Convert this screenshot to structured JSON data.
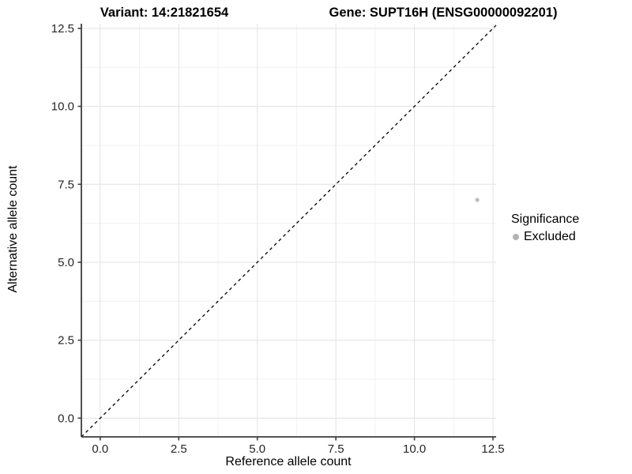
{
  "titles": {
    "variant": "Variant: 14:21821654",
    "gene": "Gene: SUPT16H (ENSG00000092201)"
  },
  "chart_data": {
    "type": "scatter",
    "xlabel": "Reference allele count",
    "ylabel": "Alternative allele count",
    "x_ticks": [
      0,
      2.5,
      5,
      7.5,
      10,
      12.5
    ],
    "x_tick_labels": [
      "0.0",
      "2.5",
      "5.0",
      "7.5",
      "10.0",
      "12.5"
    ],
    "y_ticks": [
      0,
      2.5,
      5,
      7.5,
      10,
      12.5
    ],
    "y_tick_labels": [
      "0.0",
      "2.5",
      "5.0",
      "7.5",
      "10.0",
      "12.5"
    ],
    "xlim": [
      -0.6,
      12.6
    ],
    "ylim": [
      -0.6,
      12.65
    ],
    "grid": {
      "major": true,
      "minor": true
    },
    "reference_line": {
      "kind": "identity",
      "slope": 1,
      "intercept": 0,
      "style": "dashed",
      "color": "#000000"
    },
    "series": [
      {
        "name": "Excluded",
        "color": "#bdbdbd",
        "points": [
          {
            "x": 12,
            "y": 7
          }
        ]
      }
    ],
    "legend": {
      "title": "Significance",
      "position": "right",
      "items": [
        {
          "label": "Excluded",
          "color": "#b3b3b3",
          "marker": "circle"
        }
      ]
    },
    "colors": {
      "grid_major": "#e5e5e5",
      "grid_minor": "#f1f1f1",
      "axis_line": "#3c3c3c",
      "tick_mark": "#3c3c3c",
      "tick_label": "#262626"
    }
  }
}
